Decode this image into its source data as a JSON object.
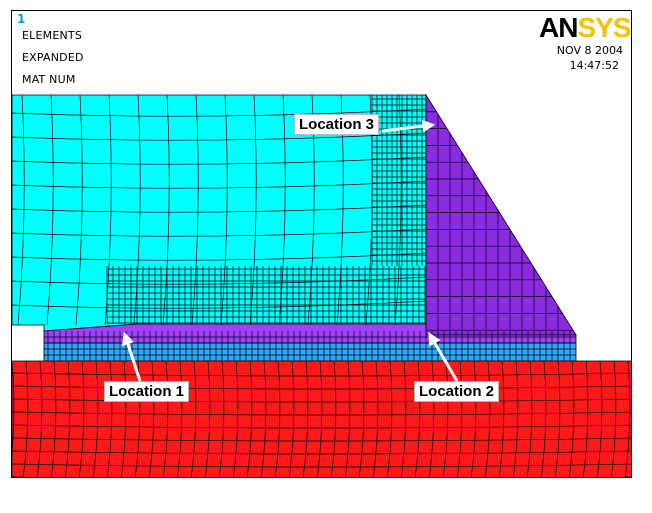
{
  "window_number": "1",
  "header_lines": [
    "ELEMENTS",
    "EXPANDED",
    "MAT NUM"
  ],
  "logo": {
    "part1": "AN",
    "part2": "SYS"
  },
  "date": "NOV  8 2004",
  "time": "14:47:52",
  "callouts": [
    "Location 1",
    "Location 2",
    "Location 3"
  ],
  "colors": {
    "mat_upper": "#00ffff",
    "mat_wedge": "#8a2be2",
    "mat_layer_purple": "#a040ff",
    "mat_layer_blue": "#2fa9ff",
    "mat_base": "#ff1a1a",
    "mesh_line": "#000000",
    "logo_accent": "#f4c200"
  }
}
